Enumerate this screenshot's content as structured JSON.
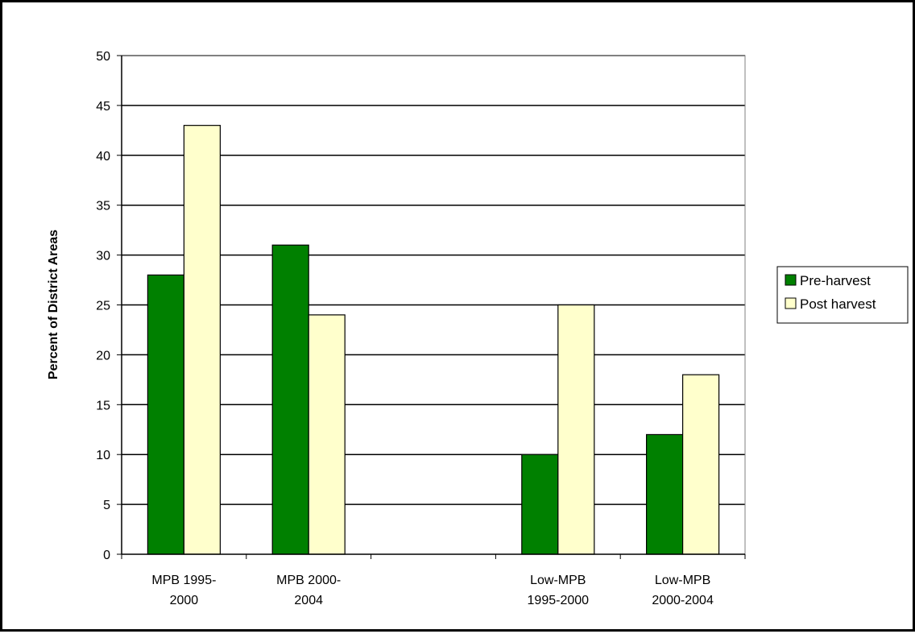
{
  "chart_data": {
    "type": "bar",
    "title": "",
    "xlabel": "",
    "ylabel": "Percent of District Areas",
    "ylim": [
      0,
      50
    ],
    "yticks": [
      "0",
      "5",
      "10",
      "15",
      "20",
      "25",
      "30",
      "35",
      "40",
      "45",
      "50"
    ],
    "grid": true,
    "legend_position": "right",
    "categories": [
      [
        "MPB 1995-",
        "2000"
      ],
      [
        "MPB 2000-",
        "2004"
      ],
      [
        "",
        ""
      ],
      [
        "Low-MPB",
        "1995-2000"
      ],
      [
        "Low-MPB",
        "2000-2004"
      ]
    ],
    "series": [
      {
        "name": "Pre-harvest",
        "color": "#008000",
        "values": [
          28,
          31,
          null,
          10,
          12
        ]
      },
      {
        "name": "Post harvest",
        "color": "#ffffcc",
        "values": [
          43,
          24,
          null,
          25,
          18
        ]
      }
    ]
  }
}
